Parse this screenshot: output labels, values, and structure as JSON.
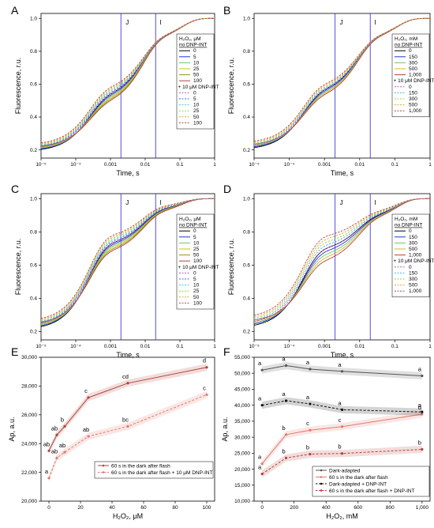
{
  "figure": {
    "panels": [
      {
        "label": "A",
        "xlabel": "Time, s",
        "ylabel": "Fluorescence, r.u.",
        "markers": [
          "J",
          "I"
        ],
        "legend_title": "H₂O₂, μM",
        "group_no": "no DNP-INT",
        "group_with": "+ 10 μM DNP-INT",
        "levels": [
          "0",
          "5",
          "10",
          "25",
          "50",
          "100"
        ]
      },
      {
        "label": "B",
        "xlabel": "Time, s",
        "ylabel": "Fluorescence, r.u.",
        "markers": [
          "J",
          "I"
        ],
        "legend_title": "H₂O₂, mM",
        "group_no": "no DNP-INT",
        "group_with": "+ 10 μM DNP-INT",
        "levels": [
          "0",
          "150",
          "300",
          "500",
          "1,000"
        ]
      },
      {
        "label": "C",
        "xlabel": "Time, s",
        "ylabel": "Fluorescence, r.u.",
        "markers": [
          "J",
          "I"
        ],
        "legend_title": "H₂O₂, μM",
        "group_no": "no DNP-INT",
        "group_with": "+ 10 μM DNP-INT",
        "levels": [
          "0",
          "5",
          "10",
          "25",
          "50",
          "100"
        ]
      },
      {
        "label": "D",
        "xlabel": "Time, s",
        "ylabel": "Fluorescence, r.u.",
        "markers": [
          "J",
          "I"
        ],
        "legend_title": "H₂O₂, mM",
        "group_no": "no DNP-INT",
        "group_with": "+ 10 μM DNP-INT",
        "levels": [
          "0",
          "150",
          "300",
          "500",
          "1,000"
        ]
      },
      {
        "label": "E",
        "xlabel": "H₂O₂, μM",
        "ylabel": "Ap, a.u."
      },
      {
        "label": "F",
        "xlabel": "H₂O₂, mM",
        "ylabel": "Ap, a.u."
      }
    ]
  },
  "chart_data": [
    {
      "panel": "A",
      "type": "line",
      "x_scale": "log",
      "x_tick_labels": [
        "10⁻⁵",
        "10⁻⁴",
        "0.001",
        "0.01",
        "0.1",
        "1"
      ],
      "y_tick_labels": [
        "0.2",
        "0.4",
        "0.6",
        "0.8",
        "1.0"
      ],
      "xlim": [
        1e-05,
        1
      ],
      "ylim": [
        0.15,
        1.03
      ],
      "marker_lines": [
        {
          "label": "J",
          "x": 0.002
        },
        {
          "label": "I",
          "x": 0.02
        }
      ],
      "curve_model": {
        "F0": [
          0.19,
          0.23
        ],
        "FJ": [
          0.46,
          0.55
        ],
        "FI": [
          0.85,
          0.86
        ],
        "FM": 1.0,
        "t1": 0.00025,
        "t2": 0.0085,
        "t3": 0.11
      }
    },
    {
      "panel": "B",
      "type": "line",
      "x_scale": "log",
      "x_tick_labels": [
        "10⁻⁵",
        "10⁻⁴",
        "0.001",
        "0.01",
        "0.1",
        "1"
      ],
      "y_tick_labels": [
        "0.2",
        "0.4",
        "0.6",
        "0.8",
        "1.0"
      ],
      "xlim": [
        1e-05,
        1
      ],
      "ylim": [
        0.15,
        1.03
      ],
      "marker_lines": [
        {
          "label": "J",
          "x": 0.002
        },
        {
          "label": "I",
          "x": 0.02
        }
      ],
      "curve_model": {
        "F0": [
          0.2,
          0.24
        ],
        "FJ": [
          0.5,
          0.57
        ],
        "FI": [
          0.85,
          0.86
        ],
        "FM": 1.0,
        "t1": 0.00025,
        "t2": 0.0085,
        "t3": 0.11
      }
    },
    {
      "panel": "C",
      "type": "line",
      "x_scale": "log",
      "x_tick_labels": [
        "10⁻⁵",
        "10⁻⁴",
        "0.001",
        "0.01",
        "0.1",
        "1"
      ],
      "y_tick_labels": [
        "0.2",
        "0.4",
        "0.6",
        "0.8",
        "1.0"
      ],
      "xlim": [
        1e-05,
        1
      ],
      "ylim": [
        0.15,
        1.03
      ],
      "marker_lines": [
        {
          "label": "J",
          "x": 0.002
        },
        {
          "label": "I",
          "x": 0.02
        }
      ],
      "curve_model": {
        "F0": [
          0.21,
          0.26
        ],
        "FJ": [
          0.66,
          0.76
        ],
        "FI": [
          0.9,
          0.94
        ],
        "FM": 1.0,
        "t1": 0.00025,
        "t2": 0.0085,
        "t3": 0.11
      }
    },
    {
      "panel": "D",
      "type": "line",
      "x_scale": "log",
      "x_tick_labels": [
        "10⁻⁵",
        "10⁻⁴",
        "0.001",
        "0.01",
        "0.1",
        "1"
      ],
      "y_tick_labels": [
        "0.2",
        "0.4",
        "0.6",
        "0.8",
        "1.0"
      ],
      "xlim": [
        1e-05,
        1
      ],
      "ylim": [
        0.15,
        1.03
      ],
      "marker_lines": [
        {
          "label": "J",
          "x": 0.002
        },
        {
          "label": "I",
          "x": 0.02
        }
      ],
      "curve_model": {
        "F0": [
          0.22,
          0.28
        ],
        "FJ": [
          0.6,
          0.76
        ],
        "FI": [
          0.85,
          0.9
        ],
        "FM": 1.0,
        "t1": 0.00025,
        "t2": 0.0085,
        "t3": 0.11
      }
    },
    {
      "panel": "E",
      "type": "line",
      "x": [
        0,
        5,
        10,
        25,
        50,
        100
      ],
      "xlim": [
        -5,
        105
      ],
      "ylim": [
        20000,
        30000
      ],
      "x_tick_labels": [
        "0",
        "20",
        "40",
        "60",
        "80",
        "100"
      ],
      "y_tick_labels": [
        "20,000",
        "22,000",
        "24,000",
        "26,000",
        "28,000",
        "30,000"
      ],
      "series": [
        {
          "name": "60 s in the dark after flash",
          "color": "#b0433a",
          "values": [
            23500,
            24600,
            25200,
            27200,
            28200,
            29300
          ],
          "letters": [
            "ab",
            "ab",
            "b",
            "c",
            "cd",
            "d"
          ]
        },
        {
          "name": "60 s in the dark after flash + 10 μM DNP-INT",
          "color": "#e07b6e",
          "values": [
            21600,
            23000,
            23400,
            24500,
            25200,
            27400
          ],
          "letters": [
            "a",
            "ab",
            "ab",
            "ab",
            "bc",
            "c"
          ]
        }
      ]
    },
    {
      "panel": "F",
      "type": "line",
      "x": [
        0,
        150,
        300,
        500,
        1000
      ],
      "xlim": [
        -50,
        1050
      ],
      "ylim": [
        10000,
        55000
      ],
      "x_tick_labels": [
        "0",
        "200",
        "400",
        "600",
        "800",
        "1,000"
      ],
      "y_tick_labels": [
        "10,000",
        "15,000",
        "20,000",
        "25,000",
        "30,000",
        "35,000",
        "40,000",
        "45,000",
        "50,000",
        "55,000"
      ],
      "series": [
        {
          "name": "Dark-adapted",
          "color": "#555555",
          "values": [
            51000,
            52400,
            51300,
            50600,
            49200
          ],
          "letters": [
            "a",
            "a",
            "a",
            "a",
            "a"
          ]
        },
        {
          "name": "60 s in the dark after flash",
          "color": "#e07b6e",
          "values": [
            21700,
            30800,
            32200,
            33300,
            37200
          ],
          "letters": [
            "a",
            "b",
            "c",
            "c",
            "d"
          ]
        },
        {
          "name": "Dark-adapted + DNP-INT",
          "color": "#111111",
          "values": [
            40000,
            41400,
            40400,
            38600,
            37900
          ],
          "letters": [
            "a",
            "a",
            "a",
            "a",
            "a"
          ]
        },
        {
          "name": "60 s in the dark after flash + DNP-INT",
          "color": "#b0433a",
          "values": [
            18500,
            23500,
            24700,
            24900,
            26200
          ],
          "letters": [
            "a",
            "b",
            "b",
            "b",
            "b"
          ]
        }
      ]
    }
  ]
}
